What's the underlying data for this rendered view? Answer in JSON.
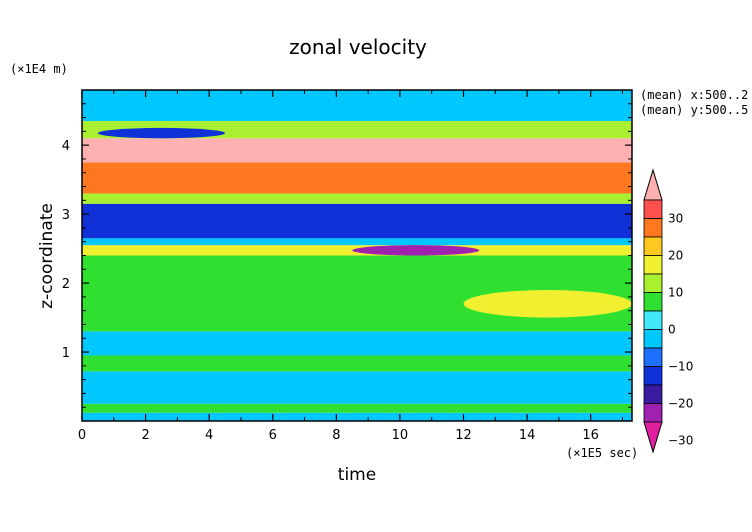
{
  "chart_data": {
    "type": "heatmap",
    "title": "zonal velocity",
    "xlabel": "time",
    "ylabel": "z-coordinate",
    "x_unit": "(×1E5 sec)",
    "y_unit": "(×1E4 m)",
    "xlim": [
      0,
      17.3
    ],
    "ylim": [
      0,
      4.8
    ],
    "xticks": [
      "0",
      "2",
      "4",
      "6",
      "8",
      "10",
      "12",
      "14",
      "16"
    ],
    "yticks": [
      "1",
      "2",
      "3",
      "4"
    ],
    "annotations": [
      "(mean) x:500..2",
      "(mean) y:500..5"
    ],
    "colorbar": {
      "levels": [
        -35,
        -30,
        -25,
        -20,
        -15,
        -10,
        -5,
        0,
        5,
        10,
        15,
        20,
        25,
        30,
        35
      ],
      "tick_labels": [
        "30",
        "20",
        "10",
        "0",
        "−10",
        "−20",
        "−30"
      ],
      "colors": [
        "#e020a0",
        "#a020b0",
        "#3a1aa0",
        "#1030d8",
        "#2070ff",
        "#00c8ff",
        "#40e8f8",
        "#30e030",
        "#a8f030",
        "#f0f030",
        "#ffc820",
        "#ff7820",
        "#ff5050",
        "#ffb0b0"
      ]
    },
    "bands": [
      {
        "value": -7.5,
        "z": [
          0.0,
          0.12
        ]
      },
      {
        "value": 2.5,
        "z": [
          0.12,
          0.25
        ]
      },
      {
        "value": -7.5,
        "z": [
          0.25,
          0.72
        ]
      },
      {
        "value": 2.5,
        "z": [
          0.72,
          0.95
        ]
      },
      {
        "value": -7.5,
        "z": [
          0.95,
          1.3
        ]
      },
      {
        "value": 2.5,
        "z": [
          1.3,
          2.4
        ]
      },
      {
        "value": 12.5,
        "z": [
          2.4,
          2.55
        ]
      },
      {
        "value": -7.5,
        "z": [
          2.55,
          2.65
        ]
      },
      {
        "value": -17.5,
        "z": [
          2.65,
          3.15
        ]
      },
      {
        "value": 7.5,
        "z": [
          3.15,
          3.3
        ]
      },
      {
        "value": 22.5,
        "z": [
          3.3,
          3.75
        ]
      },
      {
        "value": 32.5,
        "z": [
          3.75,
          4.1
        ]
      },
      {
        "value": 7.5,
        "z": [
          4.1,
          4.35
        ]
      },
      {
        "value": -7.5,
        "z": [
          4.35,
          4.8
        ]
      }
    ],
    "features": [
      {
        "value": -17.5,
        "time": [
          0.5,
          4.5
        ],
        "z": [
          4.1,
          4.25
        ]
      },
      {
        "value": -27.5,
        "time": [
          8.5,
          12.5
        ],
        "z": [
          2.4,
          2.55
        ]
      },
      {
        "value": 12.5,
        "time": [
          12.0,
          17.3
        ],
        "z": [
          1.5,
          1.9
        ]
      }
    ]
  }
}
